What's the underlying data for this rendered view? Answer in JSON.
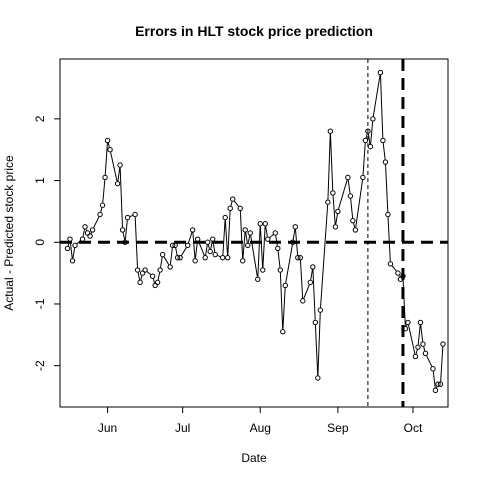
{
  "chart_data": {
    "type": "line",
    "title": "Errors in HLT stock price prediction",
    "xlabel": "Date",
    "ylabel": "Actual - Predicted stock price",
    "x_ticks": [
      {
        "label": "Jun",
        "date": "2023-06-01"
      },
      {
        "label": "Jul",
        "date": "2023-07-01"
      },
      {
        "label": "Aug",
        "date": "2023-08-01"
      },
      {
        "label": "Sep",
        "date": "2023-09-01"
      },
      {
        "label": "Oct",
        "date": "2023-10-01"
      }
    ],
    "y_ticks": [
      {
        "label": "-2",
        "value": -2
      },
      {
        "label": "-1",
        "value": -1
      },
      {
        "label": "0",
        "value": 0
      },
      {
        "label": "1",
        "value": 1
      },
      {
        "label": "2",
        "value": 2
      }
    ],
    "xlim": [
      "2023-05-13",
      "2023-10-15"
    ],
    "ylim": [
      -2.67,
      2.97
    ],
    "grid": false,
    "legend": "none",
    "series": [
      {
        "style": "line with open circles",
        "color": "#000000",
        "points": [
          {
            "x": "2023-05-16",
            "y": -0.1
          },
          {
            "x": "2023-05-17",
            "y": 0.05
          },
          {
            "x": "2023-05-18",
            "y": -0.3
          },
          {
            "x": "2023-05-19",
            "y": -0.05
          },
          {
            "x": "2023-05-22",
            "y": 0.05
          },
          {
            "x": "2023-05-23",
            "y": 0.25
          },
          {
            "x": "2023-05-24",
            "y": 0.15
          },
          {
            "x": "2023-05-25",
            "y": 0.1
          },
          {
            "x": "2023-05-26",
            "y": 0.2
          },
          {
            "x": "2023-05-29",
            "y": 0.45
          },
          {
            "x": "2023-05-30",
            "y": 0.6
          },
          {
            "x": "2023-05-31",
            "y": 1.05
          },
          {
            "x": "2023-06-01",
            "y": 1.65
          },
          {
            "x": "2023-06-02",
            "y": 1.5
          },
          {
            "x": "2023-06-05",
            "y": 0.95
          },
          {
            "x": "2023-06-06",
            "y": 1.25
          },
          {
            "x": "2023-06-07",
            "y": 0.2
          },
          {
            "x": "2023-06-08",
            "y": 0.0
          },
          {
            "x": "2023-06-09",
            "y": 0.4
          },
          {
            "x": "2023-06-12",
            "y": 0.45
          },
          {
            "x": "2023-06-13",
            "y": -0.45
          },
          {
            "x": "2023-06-14",
            "y": -0.65
          },
          {
            "x": "2023-06-15",
            "y": -0.5
          },
          {
            "x": "2023-06-16",
            "y": -0.45
          },
          {
            "x": "2023-06-19",
            "y": -0.55
          },
          {
            "x": "2023-06-20",
            "y": -0.7
          },
          {
            "x": "2023-06-21",
            "y": -0.65
          },
          {
            "x": "2023-06-22",
            "y": -0.45
          },
          {
            "x": "2023-06-23",
            "y": -0.2
          },
          {
            "x": "2023-06-26",
            "y": -0.4
          },
          {
            "x": "2023-06-27",
            "y": -0.05
          },
          {
            "x": "2023-06-28",
            "y": -0.05
          },
          {
            "x": "2023-06-29",
            "y": -0.25
          },
          {
            "x": "2023-06-30",
            "y": -0.25
          },
          {
            "x": "2023-07-03",
            "y": -0.05
          },
          {
            "x": "2023-07-05",
            "y": 0.2
          },
          {
            "x": "2023-07-06",
            "y": -0.3
          },
          {
            "x": "2023-07-07",
            "y": 0.05
          },
          {
            "x": "2023-07-10",
            "y": -0.25
          },
          {
            "x": "2023-07-11",
            "y": 0.0
          },
          {
            "x": "2023-07-12",
            "y": -0.15
          },
          {
            "x": "2023-07-13",
            "y": 0.05
          },
          {
            "x": "2023-07-14",
            "y": -0.2
          },
          {
            "x": "2023-07-17",
            "y": -0.25
          },
          {
            "x": "2023-07-18",
            "y": 0.4
          },
          {
            "x": "2023-07-19",
            "y": -0.25
          },
          {
            "x": "2023-07-20",
            "y": 0.55
          },
          {
            "x": "2023-07-21",
            "y": 0.7
          },
          {
            "x": "2023-07-24",
            "y": 0.55
          },
          {
            "x": "2023-07-25",
            "y": -0.3
          },
          {
            "x": "2023-07-26",
            "y": 0.2
          },
          {
            "x": "2023-07-27",
            "y": -0.05
          },
          {
            "x": "2023-07-28",
            "y": 0.15
          },
          {
            "x": "2023-07-31",
            "y": -0.6
          },
          {
            "x": "2023-08-01",
            "y": 0.3
          },
          {
            "x": "2023-08-02",
            "y": -0.45
          },
          {
            "x": "2023-08-03",
            "y": 0.3
          },
          {
            "x": "2023-08-04",
            "y": 0.05
          },
          {
            "x": "2023-08-07",
            "y": 0.15
          },
          {
            "x": "2023-08-08",
            "y": -0.1
          },
          {
            "x": "2023-08-09",
            "y": -0.45
          },
          {
            "x": "2023-08-10",
            "y": -1.45
          },
          {
            "x": "2023-08-11",
            "y": -0.7
          },
          {
            "x": "2023-08-14",
            "y": 0.0
          },
          {
            "x": "2023-08-15",
            "y": 0.25
          },
          {
            "x": "2023-08-16",
            "y": -0.25
          },
          {
            "x": "2023-08-17",
            "y": -0.25
          },
          {
            "x": "2023-08-18",
            "y": -0.95
          },
          {
            "x": "2023-08-21",
            "y": -0.65
          },
          {
            "x": "2023-08-22",
            "y": -0.4
          },
          {
            "x": "2023-08-23",
            "y": -1.3
          },
          {
            "x": "2023-08-24",
            "y": -2.2
          },
          {
            "x": "2023-08-25",
            "y": -1.1
          },
          {
            "x": "2023-08-28",
            "y": 0.65
          },
          {
            "x": "2023-08-29",
            "y": 1.8
          },
          {
            "x": "2023-08-30",
            "y": 0.8
          },
          {
            "x": "2023-08-31",
            "y": 0.25
          },
          {
            "x": "2023-09-01",
            "y": 0.5
          },
          {
            "x": "2023-09-05",
            "y": 1.05
          },
          {
            "x": "2023-09-06",
            "y": 0.75
          },
          {
            "x": "2023-09-07",
            "y": 0.35
          },
          {
            "x": "2023-09-08",
            "y": 0.2
          },
          {
            "x": "2023-09-11",
            "y": 1.05
          },
          {
            "x": "2023-09-12",
            "y": 1.65
          },
          {
            "x": "2023-09-13",
            "y": 1.8
          },
          {
            "x": "2023-09-14",
            "y": 1.55
          },
          {
            "x": "2023-09-15",
            "y": 2.0
          },
          {
            "x": "2023-09-18",
            "y": 2.75
          },
          {
            "x": "2023-09-19",
            "y": 1.65
          },
          {
            "x": "2023-09-20",
            "y": 1.3
          },
          {
            "x": "2023-09-21",
            "y": 0.45
          },
          {
            "x": "2023-09-22",
            "y": -0.35
          },
          {
            "x": "2023-09-25",
            "y": -0.5
          },
          {
            "x": "2023-09-26",
            "y": -0.6
          },
          {
            "x": "2023-09-27",
            "y": -0.55
          },
          {
            "x": "2023-09-28",
            "y": -1.4
          },
          {
            "x": "2023-09-29",
            "y": -1.3
          },
          {
            "x": "2023-10-02",
            "y": -1.85
          },
          {
            "x": "2023-10-03",
            "y": -1.7
          },
          {
            "x": "2023-10-04",
            "y": -1.3
          },
          {
            "x": "2023-10-05",
            "y": -1.65
          },
          {
            "x": "2023-10-06",
            "y": -1.8
          },
          {
            "x": "2023-10-09",
            "y": -2.05
          },
          {
            "x": "2023-10-10",
            "y": -2.4
          },
          {
            "x": "2023-10-11",
            "y": -2.3
          },
          {
            "x": "2023-10-12",
            "y": -2.3
          },
          {
            "x": "2023-10-13",
            "y": -1.65
          }
        ]
      }
    ],
    "reference_lines": {
      "horizontal": [
        {
          "y": 0,
          "style": "thick-dashed"
        }
      ],
      "vertical": [
        {
          "x": "2023-09-13",
          "style": "thin-dashed"
        },
        {
          "x": "2023-09-27",
          "style": "thick-dashed"
        }
      ]
    }
  }
}
